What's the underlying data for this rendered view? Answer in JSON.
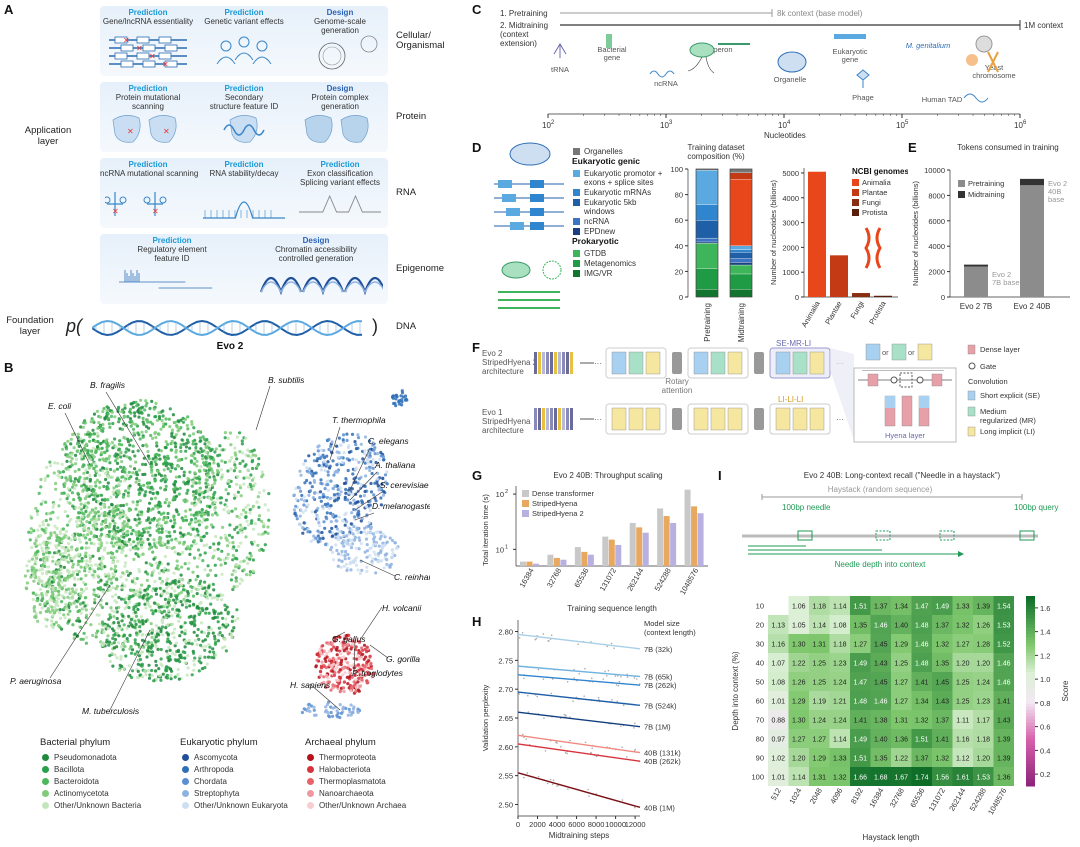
{
  "panelA": {
    "letter": "A",
    "rows": [
      {
        "label": "Cellular/\nOrganismal",
        "cells": [
          {
            "kind": "Prediction",
            "text": "Gene/lncRNA essentiality"
          },
          {
            "kind": "Prediction",
            "text": "Genetic variant effects"
          },
          {
            "kind": "Design",
            "text": "Genome-scale\ngeneration"
          }
        ]
      },
      {
        "label": "Protein",
        "cells": [
          {
            "kind": "Prediction",
            "text": "Protein mutational\nscanning"
          },
          {
            "kind": "Prediction",
            "text": "Secondary\nstructure feature ID"
          },
          {
            "kind": "Design",
            "text": "Protein complex\ngeneration"
          }
        ]
      },
      {
        "label": "RNA",
        "cells": [
          {
            "kind": "Prediction",
            "text": "ncRNA mutational scanning"
          },
          {
            "kind": "Prediction",
            "text": "RNA stability/decay"
          },
          {
            "kind": "Prediction",
            "text": "Exon classification\nSplicing variant effects"
          }
        ]
      },
      {
        "label": "Epigenome",
        "cells": [
          {
            "kind": "Prediction",
            "text": "Regulatory element\nfeature ID"
          },
          {
            "kind": "Design",
            "text": "Chromatin accessibility\ncontrolled generation"
          }
        ]
      }
    ],
    "application_layer": "Application\nlayer",
    "foundation_layer": "Foundation\nlayer",
    "p_symbol": "p(",
    "p_close": ")",
    "dna": "DNA",
    "model": "Evo 2"
  },
  "panelB": {
    "letter": "B",
    "labels": [
      "B. subtilis",
      "B. fragilis",
      "E. coli",
      "T. thermophila",
      "C. elegans",
      "A. thaliana",
      "S. cerevisiae",
      "D. melanogaster",
      "C. reinhardtii",
      "H. volcanii",
      "G. gallus",
      "G. gorilla",
      "P. troglodytes",
      "H. sapiens",
      "P. aeruginosa",
      "M. tuberculosis"
    ],
    "legend": [
      {
        "title": "Bacterial phylum",
        "items": [
          {
            "name": "Pseudomonadota",
            "color": "#1f8a3c"
          },
          {
            "name": "Bacillota",
            "color": "#2aa04a"
          },
          {
            "name": "Bacteroidota",
            "color": "#4cb85c"
          },
          {
            "name": "Actinomycetota",
            "color": "#7fcb7a"
          },
          {
            "name": "Other/Unknown Bacteria",
            "color": "#c5e6bd"
          }
        ]
      },
      {
        "title": "Eukaryotic phylum",
        "items": [
          {
            "name": "Ascomycota",
            "color": "#1f4f99"
          },
          {
            "name": "Arthropoda",
            "color": "#2f6fb8"
          },
          {
            "name": "Chordata",
            "color": "#5b8fd0"
          },
          {
            "name": "Streptophyta",
            "color": "#8fb3e0"
          },
          {
            "name": "Other/Unknown Eukaryota",
            "color": "#cfdff2"
          }
        ]
      },
      {
        "title": "Archaeal phylum",
        "items": [
          {
            "name": "Thermoproteota",
            "color": "#b5121b"
          },
          {
            "name": "Halobacteriota",
            "color": "#d8333c"
          },
          {
            "name": "Thermoplasmatota",
            "color": "#e8626a"
          },
          {
            "name": "Nanoarchaeota",
            "color": "#f098a0"
          },
          {
            "name": "Other/Unknown Archaea",
            "color": "#f8cdd0"
          }
        ]
      }
    ]
  },
  "panelC": {
    "letter": "C",
    "pretraining": "1. Pretraining",
    "pretraining_note": "8k context (base model)",
    "midtraining": "2. Midtraining\n(context\nextension)",
    "midtraining_note": "1M context",
    "items": [
      "tRNA",
      "Bacterial\ngene",
      "ncRNA",
      "Operon",
      "Organelle",
      "Eukaryotic\ngene",
      "Phage",
      "M. genitalium",
      "Yeast\nchromosome",
      "Human TAD"
    ],
    "xlabel": "Nucleotides",
    "ticks": [
      "10",
      "10",
      "10",
      "10",
      "10"
    ],
    "tick_exp": [
      "2",
      "3",
      "4",
      "5",
      "6"
    ]
  },
  "panelD": {
    "letter": "D",
    "legend": [
      {
        "name": "Organelles",
        "color": "#777777",
        "header": false
      },
      {
        "name": "Eukaryotic genic",
        "color": "",
        "header": true
      },
      {
        "name": "Eukaryotic promotor +\nexons + splice sites",
        "color": "#5aa9e0",
        "header": false
      },
      {
        "name": "Eukaryotic mRNAs",
        "color": "#2f86cf",
        "header": false
      },
      {
        "name": "Eukaryotic 5kb\nwindows",
        "color": "#1f5fa8",
        "header": false
      },
      {
        "name": "ncRNA",
        "color": "#3c73c2",
        "header": false
      },
      {
        "name": "EPDnew",
        "color": "#1b3f82",
        "header": false
      },
      {
        "name": "Prokaryotic",
        "color": "",
        "header": true
      },
      {
        "name": "GTDB",
        "color": "#3fb55b",
        "header": false
      },
      {
        "name": "Metagenomics",
        "color": "#1f9a45",
        "header": false
      },
      {
        "name": "IMG/VR",
        "color": "#11752f",
        "header": false
      }
    ],
    "comp_title": "Training dataset\ncomposition (%)",
    "comp_ticks": [
      "0",
      "20",
      "40",
      "60",
      "80",
      "100"
    ],
    "comp_bars": [
      "Pretraining",
      "Midtraining"
    ],
    "ncbi_ylabel": "Number of nucleotides (billions)",
    "ncbi_title": "NCBI genomes",
    "ncbi_legend": [
      {
        "name": "Animalia",
        "color": "#e8461b"
      },
      {
        "name": "Plantae",
        "color": "#c43a14"
      },
      {
        "name": "Fungi",
        "color": "#8a2e12"
      },
      {
        "name": "Protista",
        "color": "#5a1f0c"
      }
    ],
    "ncbi_ticks": [
      "0",
      "1000",
      "2000",
      "3000",
      "4000",
      "5000"
    ]
  },
  "panelE": {
    "letter": "E",
    "title": "Tokens consumed in training",
    "ylabel": "Number of nucleotides (billions)",
    "ticks": [
      "0",
      "2000",
      "4000",
      "6000",
      "8000",
      "10000"
    ],
    "legend": [
      {
        "name": "Pretraining",
        "color": "#8c8c8c"
      },
      {
        "name": "Midtraining",
        "color": "#333333"
      }
    ],
    "bars": [
      "Evo 2 7B",
      "Evo 2 40B"
    ],
    "bar_notes": [
      "Evo 2\n7B base",
      "Evo 2\n40B\nbase"
    ]
  },
  "panelF": {
    "letter": "F",
    "evo2": "Evo 2",
    "evo2_arch": "StripedHyena 2\narchitecture",
    "evo1": "Evo 1",
    "evo1_arch": "StripedHyena\narchitecture",
    "se_mr_li": "SE-MR-LI",
    "li_li_li": "LI-LI-LI",
    "rotary": "Rotary\nattention",
    "or": "or",
    "hyena_layer": "Hyena layer",
    "legend": [
      {
        "name": "Dense layer",
        "color": "#e8a0a8"
      },
      {
        "name": "Gate",
        "color": ""
      },
      {
        "name": "Convolution",
        "color": ""
      },
      {
        "name": "Short explicit (SE)",
        "color": "#a8d0f0"
      },
      {
        "name": "Medium\nregularized (MR)",
        "color": "#a8e0c8"
      },
      {
        "name": "Long implicit (LI)",
        "color": "#f5e6a0"
      }
    ]
  },
  "panelG": {
    "letter": "G",
    "title": "Evo 2 40B: Throughput scaling",
    "ylabel": "Total iteration time (s)",
    "xlabel": "Training sequence length",
    "legend": [
      {
        "name": "Dense transformer",
        "color": "#c8c8c8"
      },
      {
        "name": "StripedHyena",
        "color": "#e8a860"
      },
      {
        "name": "StripedHyena 2",
        "color": "#b8b0e0"
      }
    ],
    "ytick_major": [
      "10",
      "10"
    ],
    "ytick_exp": [
      "1",
      "2"
    ]
  },
  "panelH": {
    "letter": "H",
    "ylabel": "Validation perplexity",
    "xlabel": "Midtraining steps",
    "yticks": [
      "2.50",
      "2.55",
      "2.60",
      "2.65",
      "2.70",
      "2.75",
      "2.80"
    ],
    "xticks": [
      "0",
      "2000",
      "4000",
      "6000",
      "8000",
      "10000",
      "12000"
    ],
    "legend_title": "Model size\n(context length)"
  },
  "panelI": {
    "letter": "I",
    "title": "Evo 2 40B: Long-context recall (\"Needle in a haystack\")",
    "haystack": "Haystack (random sequence)",
    "needle": "100bp needle",
    "query": "100bp query",
    "depth_label": "Needle depth into context",
    "ylabel": "Depth into context (%)",
    "xlabel": "Haystack length",
    "colorbar_label": "Score",
    "colorbar_ticks": [
      "0.2",
      "0.4",
      "0.6",
      "0.8",
      "1.0",
      "1.2",
      "1.4",
      "1.6"
    ]
  },
  "chart_data": [
    {
      "type": "bar",
      "id": "D-composition",
      "title": "Training dataset\ncomposition (%)",
      "categories": [
        "Pretraining",
        "Midtraining"
      ],
      "ylim": [
        0,
        100
      ],
      "series": [
        {
          "name": "IMG/VR",
          "color": "#11752f",
          "values": [
            6,
            6
          ]
        },
        {
          "name": "Metagenomics",
          "color": "#1f9a45",
          "values": [
            16,
            12
          ]
        },
        {
          "name": "GTDB",
          "color": "#3fb55b",
          "values": [
            20,
            7
          ]
        },
        {
          "name": "EPDnew",
          "color": "#1b3f82",
          "values": [
            1,
            2
          ]
        },
        {
          "name": "ncRNA",
          "color": "#3c73c2",
          "values": [
            3,
            3
          ]
        },
        {
          "name": "Eukaryotic 5kb\nwindows",
          "color": "#1f5fa8",
          "values": [
            14,
            5
          ]
        },
        {
          "name": "Eukaryotic mRNAs",
          "color": "#2f86cf",
          "values": [
            12,
            2
          ]
        },
        {
          "name": "Eukaryotic promotor +\nexons + splice sites",
          "color": "#5aa9e0",
          "values": [
            27,
            3
          ]
        },
        {
          "name": "Animalia",
          "color": "#e8461b",
          "values": [
            0,
            52
          ]
        },
        {
          "name": "Plantae",
          "color": "#c43a14",
          "values": [
            0,
            5
          ]
        },
        {
          "name": "Organelles",
          "color": "#777777",
          "values": [
            1,
            3
          ]
        }
      ]
    },
    {
      "type": "bar",
      "id": "D-ncbi",
      "categories": [
        "Animalia",
        "Plantae",
        "Fungi",
        "Protista"
      ],
      "values": [
        5050,
        1680,
        160,
        50
      ],
      "colors": [
        "#e8461b",
        "#c43a14",
        "#8a2e12",
        "#5a1f0c"
      ],
      "ylim": [
        0,
        5200
      ],
      "ylabel": "Number of nucleotides (billions)"
    },
    {
      "type": "bar",
      "id": "E-tokens",
      "title": "Tokens consumed in training",
      "categories": [
        "Evo 2 7B",
        "Evo 2 40B"
      ],
      "series": [
        {
          "name": "Pretraining",
          "values": [
            2400,
            8800
          ]
        },
        {
          "name": "Midtraining",
          "values": [
            150,
            500
          ]
        }
      ],
      "ylim": [
        0,
        10000
      ]
    },
    {
      "type": "bar",
      "id": "G-throughput",
      "title": "Evo 2 40B: Throughput scaling",
      "categories": [
        "16384",
        "32768",
        "65536",
        "131072",
        "262144",
        "524288",
        "1048576"
      ],
      "series": [
        {
          "name": "Dense transformer",
          "values": [
            6,
            8,
            11,
            17,
            30,
            55,
            120
          ]
        },
        {
          "name": "StripedHyena",
          "values": [
            6,
            7,
            9,
            15,
            25,
            40,
            60
          ]
        },
        {
          "name": "StripedHyena 2",
          "values": [
            5.5,
            6.5,
            8,
            12,
            20,
            30,
            45
          ]
        }
      ],
      "ylim": [
        5,
        140
      ],
      "yscale": "log"
    },
    {
      "type": "line",
      "id": "H-perplexity",
      "xlabel": "Midtraining steps",
      "ylabel": "Validation perplexity",
      "xlim": [
        0,
        12500
      ],
      "ylim": [
        2.48,
        2.82
      ],
      "series": [
        {
          "name": "7B (32k)",
          "color": "#a8cfe8",
          "values": [
            2.795,
            2.77
          ]
        },
        {
          "name": "7B (65k)",
          "color": "#6fb3e0",
          "values": [
            2.74,
            2.722
          ]
        },
        {
          "name": "7B (262k)",
          "color": "#2f86cf",
          "values": [
            2.725,
            2.707
          ]
        },
        {
          "name": "7B (524k)",
          "color": "#1f5fa8",
          "values": [
            2.695,
            2.672
          ]
        },
        {
          "name": "7B (1M)",
          "color": "#123f80",
          "values": [
            2.66,
            2.635
          ]
        },
        {
          "name": "40B (131k)",
          "color": "#f08a80",
          "values": [
            2.62,
            2.59
          ]
        },
        {
          "name": "40B (262k)",
          "color": "#d8333c",
          "values": [
            2.605,
            2.575
          ]
        },
        {
          "name": "40B (1M)",
          "color": "#7a1016",
          "values": [
            2.555,
            2.495
          ]
        }
      ],
      "x": [
        0,
        12500
      ]
    },
    {
      "type": "heatmap",
      "id": "I-needle",
      "xlabel": "Haystack length",
      "ylabel": "Depth into context (%)",
      "x": [
        "512",
        "1024",
        "2048",
        "4096",
        "8192",
        "16384",
        "32768",
        "65536",
        "131072",
        "262144",
        "524288",
        "1048576"
      ],
      "y": [
        "10",
        "20",
        "30",
        "40",
        "50",
        "60",
        "70",
        "80",
        "90",
        "100"
      ],
      "z": [
        [
          null,
          1.06,
          1.18,
          1.14,
          1.51,
          1.37,
          1.34,
          1.47,
          1.49,
          1.33,
          1.39,
          1.54
        ],
        [
          1.13,
          1.05,
          1.14,
          1.08,
          1.35,
          1.46,
          1.4,
          1.48,
          1.37,
          1.32,
          1.26,
          1.53
        ],
        [
          1.16,
          1.3,
          1.31,
          1.18,
          1.27,
          1.45,
          1.29,
          1.46,
          1.32,
          1.27,
          1.28,
          1.52
        ],
        [
          1.07,
          1.22,
          1.25,
          1.23,
          1.49,
          1.43,
          1.25,
          1.48,
          1.35,
          1.2,
          1.2,
          1.46
        ],
        [
          1.08,
          1.26,
          1.25,
          1.24,
          1.47,
          1.45,
          1.27,
          1.41,
          1.45,
          1.25,
          1.24,
          1.46
        ],
        [
          1.01,
          1.29,
          1.19,
          1.21,
          1.48,
          1.46,
          1.27,
          1.34,
          1.43,
          1.25,
          1.23,
          1.41
        ],
        [
          0.88,
          1.3,
          1.24,
          1.24,
          1.41,
          1.38,
          1.31,
          1.32,
          1.37,
          1.11,
          1.17,
          1.43
        ],
        [
          0.97,
          1.27,
          1.27,
          1.14,
          1.49,
          1.4,
          1.36,
          1.51,
          1.41,
          1.16,
          1.18,
          1.39
        ],
        [
          1.02,
          1.2,
          1.29,
          1.33,
          1.51,
          1.35,
          1.22,
          1.37,
          1.32,
          1.12,
          1.2,
          1.39
        ],
        [
          1.01,
          1.14,
          1.31,
          1.32,
          1.66,
          1.68,
          1.67,
          1.74,
          1.56,
          1.61,
          1.53,
          1.36
        ]
      ],
      "colorbar": {
        "min": 0.1,
        "max": 1.7,
        "label": "Score"
      }
    }
  ]
}
